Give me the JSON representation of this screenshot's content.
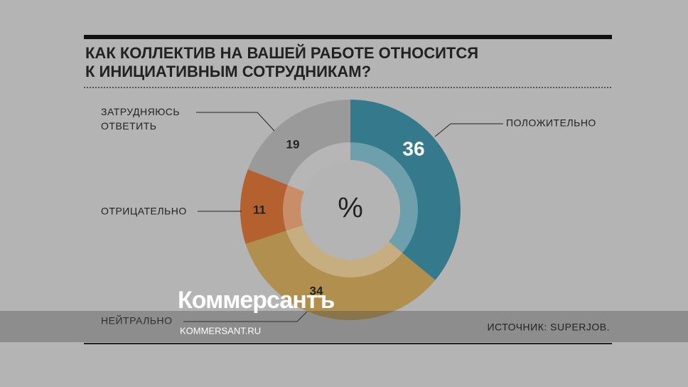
{
  "chart_data": {
    "type": "donut",
    "title": [
      "КАК КОЛЛЕКТИВ НА ВАШЕЙ РАБОТЕ ОТНОСИТСЯ",
      "К ИНИЦИАТИВНЫМ СОТРУДНИКАМ?"
    ],
    "center_label": "%",
    "categories": [
      "ПОЛОЖИТЕЛЬНО",
      "НЕЙТРАЛЬНО",
      "ОТРИЦАТЕЛЬНО",
      "ЗАТРУДНЯЮСЬ ОТВЕТИТЬ"
    ],
    "values": [
      36,
      34,
      11,
      19
    ],
    "colors": [
      "#357a8c",
      "#b08f4f",
      "#b4612f",
      "#9a9a9a"
    ],
    "source": "ИСТОЧНИК: SUPERJOB.",
    "watermark": "Коммерсантъ",
    "watermark_url": "KOMMERSANT.RU"
  }
}
